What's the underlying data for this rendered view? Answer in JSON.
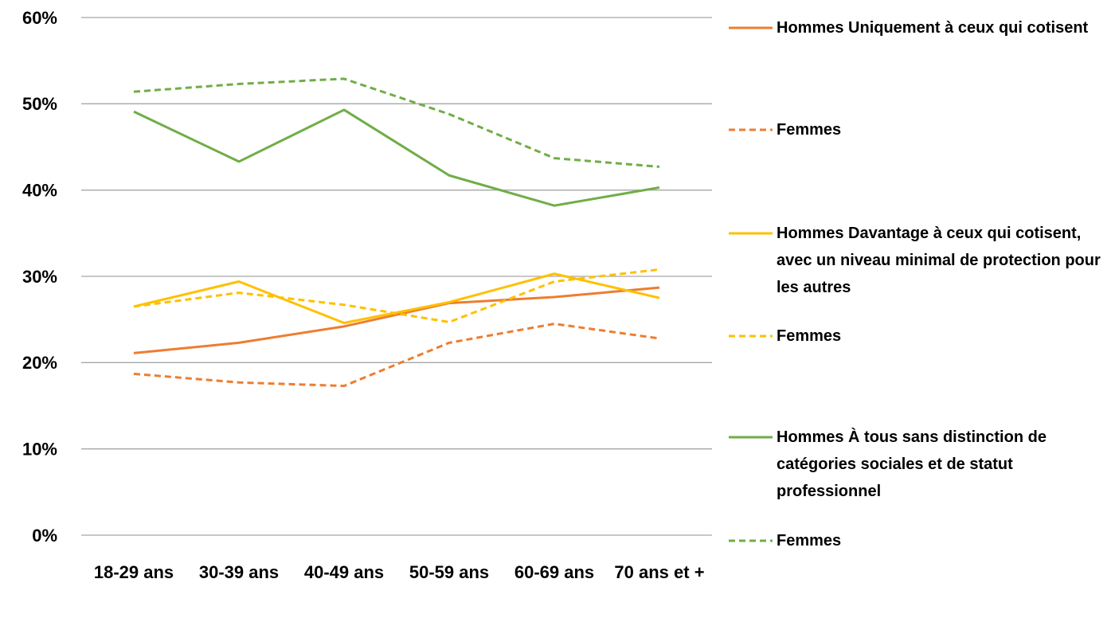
{
  "chart_data": {
    "type": "line",
    "categories": [
      "18-29 ans",
      "30-39 ans",
      "40-49 ans",
      "50-59 ans",
      "60-69 ans",
      "70 ans et +"
    ],
    "ylim": [
      0,
      60
    ],
    "yticks": [
      {
        "value": 0,
        "label": "0%"
      },
      {
        "value": 10,
        "label": "10%"
      },
      {
        "value": 20,
        "label": "20%"
      },
      {
        "value": 30,
        "label": "30%"
      },
      {
        "value": 40,
        "label": "40%"
      },
      {
        "value": 50,
        "label": "50%"
      },
      {
        "value": 60,
        "label": "60%"
      }
    ],
    "grid": true,
    "legend": "right",
    "series": [
      {
        "name": "Hommes Uniquement à ceux qui cotisent",
        "color": "#ED7D31",
        "dashed": false,
        "values": [
          21.1,
          22.3,
          24.2,
          26.9,
          27.6,
          28.7
        ]
      },
      {
        "name": "Femmes",
        "color": "#ED7D31",
        "dashed": true,
        "values": [
          18.7,
          17.7,
          17.3,
          22.3,
          24.5,
          22.8
        ]
      },
      {
        "name": "Hommes Davantage à ceux qui cotisent, avec un niveau minimal de protection pour les autres",
        "color": "#FFC000",
        "dashed": false,
        "values": [
          26.5,
          29.4,
          24.6,
          27.0,
          30.3,
          27.5
        ]
      },
      {
        "name": "Femmes",
        "color": "#FFC000",
        "dashed": true,
        "values": [
          26.5,
          28.1,
          26.7,
          24.7,
          29.4,
          30.8
        ]
      },
      {
        "name": "Hommes À tous sans distinction de catégories sociales et de statut professionnel",
        "color": "#70AD47",
        "dashed": false,
        "values": [
          49.1,
          43.3,
          49.3,
          41.7,
          38.2,
          40.3
        ]
      },
      {
        "name": "Femmes",
        "color": "#70AD47",
        "dashed": true,
        "values": [
          51.4,
          52.3,
          52.9,
          48.8,
          43.7,
          42.7
        ]
      }
    ]
  }
}
